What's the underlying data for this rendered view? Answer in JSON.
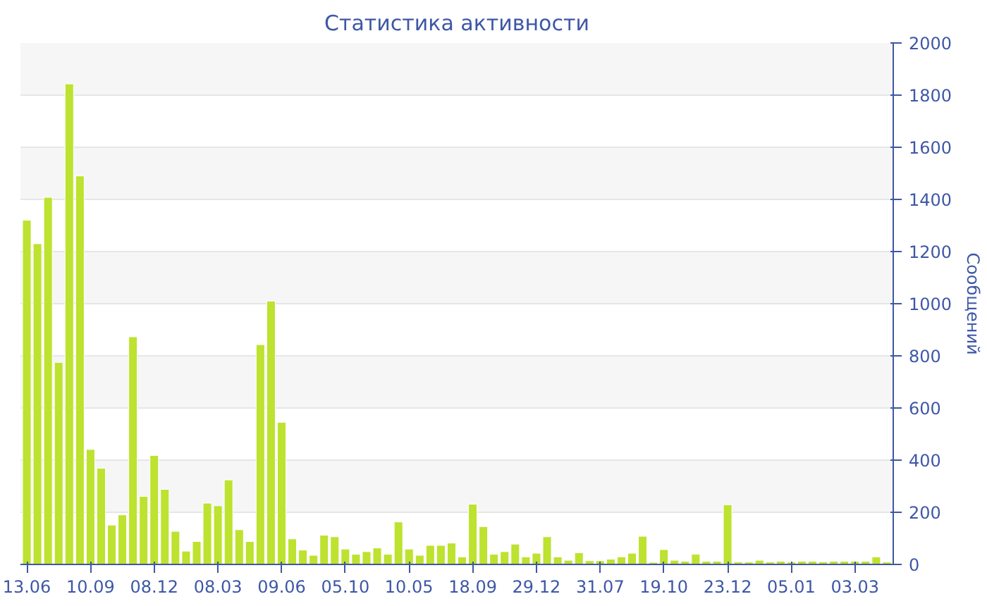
{
  "chart_data": {
    "type": "bar",
    "title": "Статистика активности",
    "ylabel": "Сообщений",
    "categories": [
      "13.06",
      null,
      null,
      null,
      null,
      null,
      "10.09",
      null,
      null,
      null,
      null,
      null,
      "08.12",
      null,
      null,
      null,
      null,
      null,
      "08.03",
      null,
      null,
      null,
      null,
      null,
      "09.06",
      null,
      null,
      null,
      null,
      null,
      "05.10",
      null,
      null,
      null,
      null,
      null,
      "10.05",
      null,
      null,
      null,
      null,
      null,
      "18.09",
      null,
      null,
      null,
      null,
      null,
      "29.12",
      null,
      null,
      null,
      null,
      null,
      "31.07",
      null,
      null,
      null,
      null,
      null,
      "19.10",
      null,
      null,
      null,
      null,
      null,
      "23.12",
      null,
      null,
      null,
      null,
      null,
      "05.01",
      null,
      null,
      null,
      null,
      null,
      "03.03",
      null,
      null,
      null
    ],
    "values": [
      1320,
      1230,
      1408,
      775,
      1843,
      1490,
      441,
      369,
      151,
      190,
      873,
      261,
      418,
      288,
      127,
      51,
      88,
      235,
      225,
      324,
      133,
      88,
      843,
      1010,
      545,
      98,
      55,
      35,
      112,
      106,
      59,
      39,
      49,
      63,
      39,
      163,
      59,
      35,
      73,
      73,
      82,
      29,
      231,
      145,
      39,
      49,
      78,
      29,
      43,
      106,
      29,
      16,
      45,
      14,
      14,
      20,
      29,
      43,
      108,
      8,
      57,
      16,
      12,
      39,
      12,
      12,
      229,
      9,
      9,
      16,
      9,
      12,
      9,
      12,
      12,
      10,
      12,
      12,
      12,
      12,
      29,
      9
    ],
    "color": "#bde22f",
    "ylim": [
      0,
      2000
    ],
    "yticks": [
      0,
      200,
      400,
      600,
      800,
      1000,
      1200,
      1400,
      1600,
      1800,
      2000
    ],
    "grid": "y"
  }
}
